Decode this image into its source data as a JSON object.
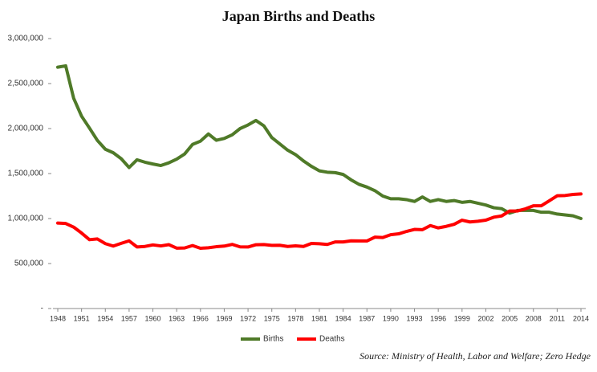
{
  "chart_data": {
    "type": "line",
    "title": "Japan Births and Deaths",
    "source": "Source: Ministry of Health, Labor and Welfare; Zero Hedge",
    "x": [
      1948,
      1949,
      1950,
      1951,
      1952,
      1953,
      1954,
      1955,
      1956,
      1957,
      1958,
      1959,
      1960,
      1961,
      1962,
      1963,
      1964,
      1965,
      1966,
      1967,
      1968,
      1969,
      1970,
      1971,
      1972,
      1973,
      1974,
      1975,
      1976,
      1977,
      1978,
      1979,
      1980,
      1981,
      1982,
      1983,
      1984,
      1985,
      1986,
      1987,
      1988,
      1989,
      1990,
      1991,
      1992,
      1993,
      1994,
      1995,
      1996,
      1997,
      1998,
      1999,
      2000,
      2001,
      2002,
      2003,
      2004,
      2005,
      2006,
      2007,
      2008,
      2009,
      2010,
      2011,
      2012,
      2013,
      2014
    ],
    "series": [
      {
        "name": "Births",
        "color": "#4f7a28",
        "values": [
          2682000,
          2697000,
          2338000,
          2138000,
          2005000,
          1868000,
          1770000,
          1731000,
          1665000,
          1567000,
          1653000,
          1626000,
          1606000,
          1589000,
          1619000,
          1660000,
          1717000,
          1824000,
          1860000,
          1940000,
          1870000,
          1890000,
          1930000,
          2000000,
          2040000,
          2090000,
          2030000,
          1900000,
          1830000,
          1760000,
          1710000,
          1640000,
          1580000,
          1530000,
          1515000,
          1510000,
          1490000,
          1430000,
          1380000,
          1350000,
          1310000,
          1250000,
          1220000,
          1220000,
          1210000,
          1190000,
          1240000,
          1190000,
          1210000,
          1190000,
          1200000,
          1180000,
          1190000,
          1170000,
          1150000,
          1120000,
          1110000,
          1060000,
          1090000,
          1090000,
          1090000,
          1070000,
          1070000,
          1050000,
          1040000,
          1030000,
          1000000
        ]
      },
      {
        "name": "Deaths",
        "color": "#ff0000",
        "values": [
          950000,
          945000,
          905000,
          839000,
          765000,
          773000,
          721000,
          694000,
          724000,
          752000,
          684000,
          690000,
          707000,
          696000,
          710000,
          671000,
          673000,
          700000,
          670000,
          675000,
          687000,
          694000,
          713000,
          685000,
          684000,
          709000,
          711000,
          702000,
          703000,
          690000,
          696000,
          690000,
          723000,
          720000,
          712000,
          740000,
          740000,
          752000,
          751000,
          751000,
          793000,
          789000,
          820000,
          830000,
          857000,
          879000,
          876000,
          922000,
          896000,
          913000,
          936000,
          982000,
          962000,
          970000,
          982000,
          1015000,
          1029000,
          1084000,
          1084000,
          1108000,
          1142000,
          1142000,
          1197000,
          1253000,
          1256000,
          1268000,
          1273000
        ]
      }
    ],
    "xlim": [
      1948,
      2014
    ],
    "xticks": [
      1948,
      1951,
      1954,
      1957,
      1960,
      1963,
      1966,
      1969,
      1972,
      1975,
      1978,
      1981,
      1984,
      1987,
      1990,
      1993,
      1996,
      1999,
      2002,
      2005,
      2008,
      2011,
      2014
    ],
    "ylim": [
      0,
      3000000
    ],
    "yticks": [
      {
        "value": 0,
        "label": "-"
      },
      {
        "value": 500000,
        "label": "500,000"
      },
      {
        "value": 1000000,
        "label": "1,000,000"
      },
      {
        "value": 1500000,
        "label": "1,500,000"
      },
      {
        "value": 2000000,
        "label": "2,000,000"
      },
      {
        "value": 2500000,
        "label": "2,500,000"
      },
      {
        "value": 3000000,
        "label": "3,000,000"
      }
    ],
    "legend": "bottom"
  }
}
